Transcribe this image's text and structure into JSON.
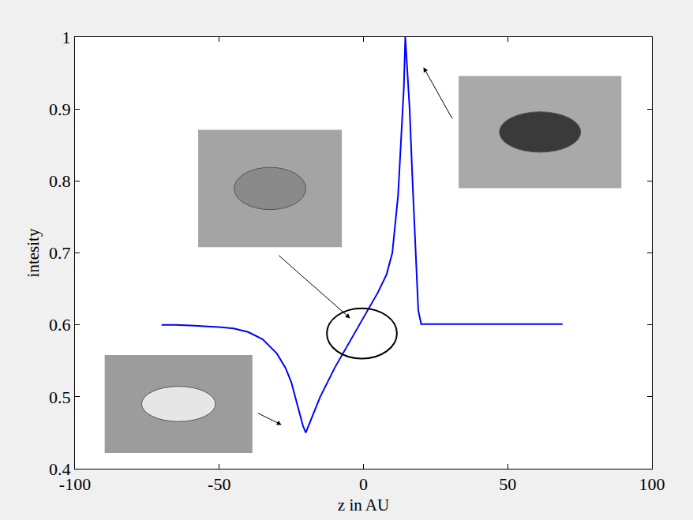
{
  "chart_data": {
    "type": "line",
    "x_label": "z in AU",
    "y_label": "intesity",
    "x": [
      -70,
      -65,
      -60,
      -55,
      -50,
      -45,
      -40,
      -35,
      -30,
      -27,
      -25,
      -23,
      -21,
      -20,
      -18,
      -15,
      -10,
      -5,
      0,
      5,
      8,
      10,
      12,
      13,
      14,
      14.5,
      16,
      17,
      18,
      19,
      20,
      25,
      30,
      40,
      50,
      60,
      69
    ],
    "values": [
      0.6,
      0.6,
      0.599,
      0.598,
      0.597,
      0.595,
      0.59,
      0.58,
      0.56,
      0.54,
      0.52,
      0.49,
      0.46,
      0.45,
      0.47,
      0.5,
      0.54,
      0.575,
      0.61,
      0.645,
      0.67,
      0.7,
      0.78,
      0.85,
      0.93,
      1.0,
      0.9,
      0.8,
      0.7,
      0.62,
      0.601,
      0.601,
      0.601,
      0.601,
      0.601,
      0.601,
      0.601
    ],
    "color": "#0000ff",
    "xlim": [
      -100,
      100
    ],
    "xticks": [
      -100,
      -50,
      0,
      50,
      100
    ],
    "ylim": [
      0.4,
      1
    ],
    "yticks": [
      0.4,
      0.5,
      0.6,
      0.7,
      0.8,
      0.9,
      1
    ],
    "grid": false
  }
}
